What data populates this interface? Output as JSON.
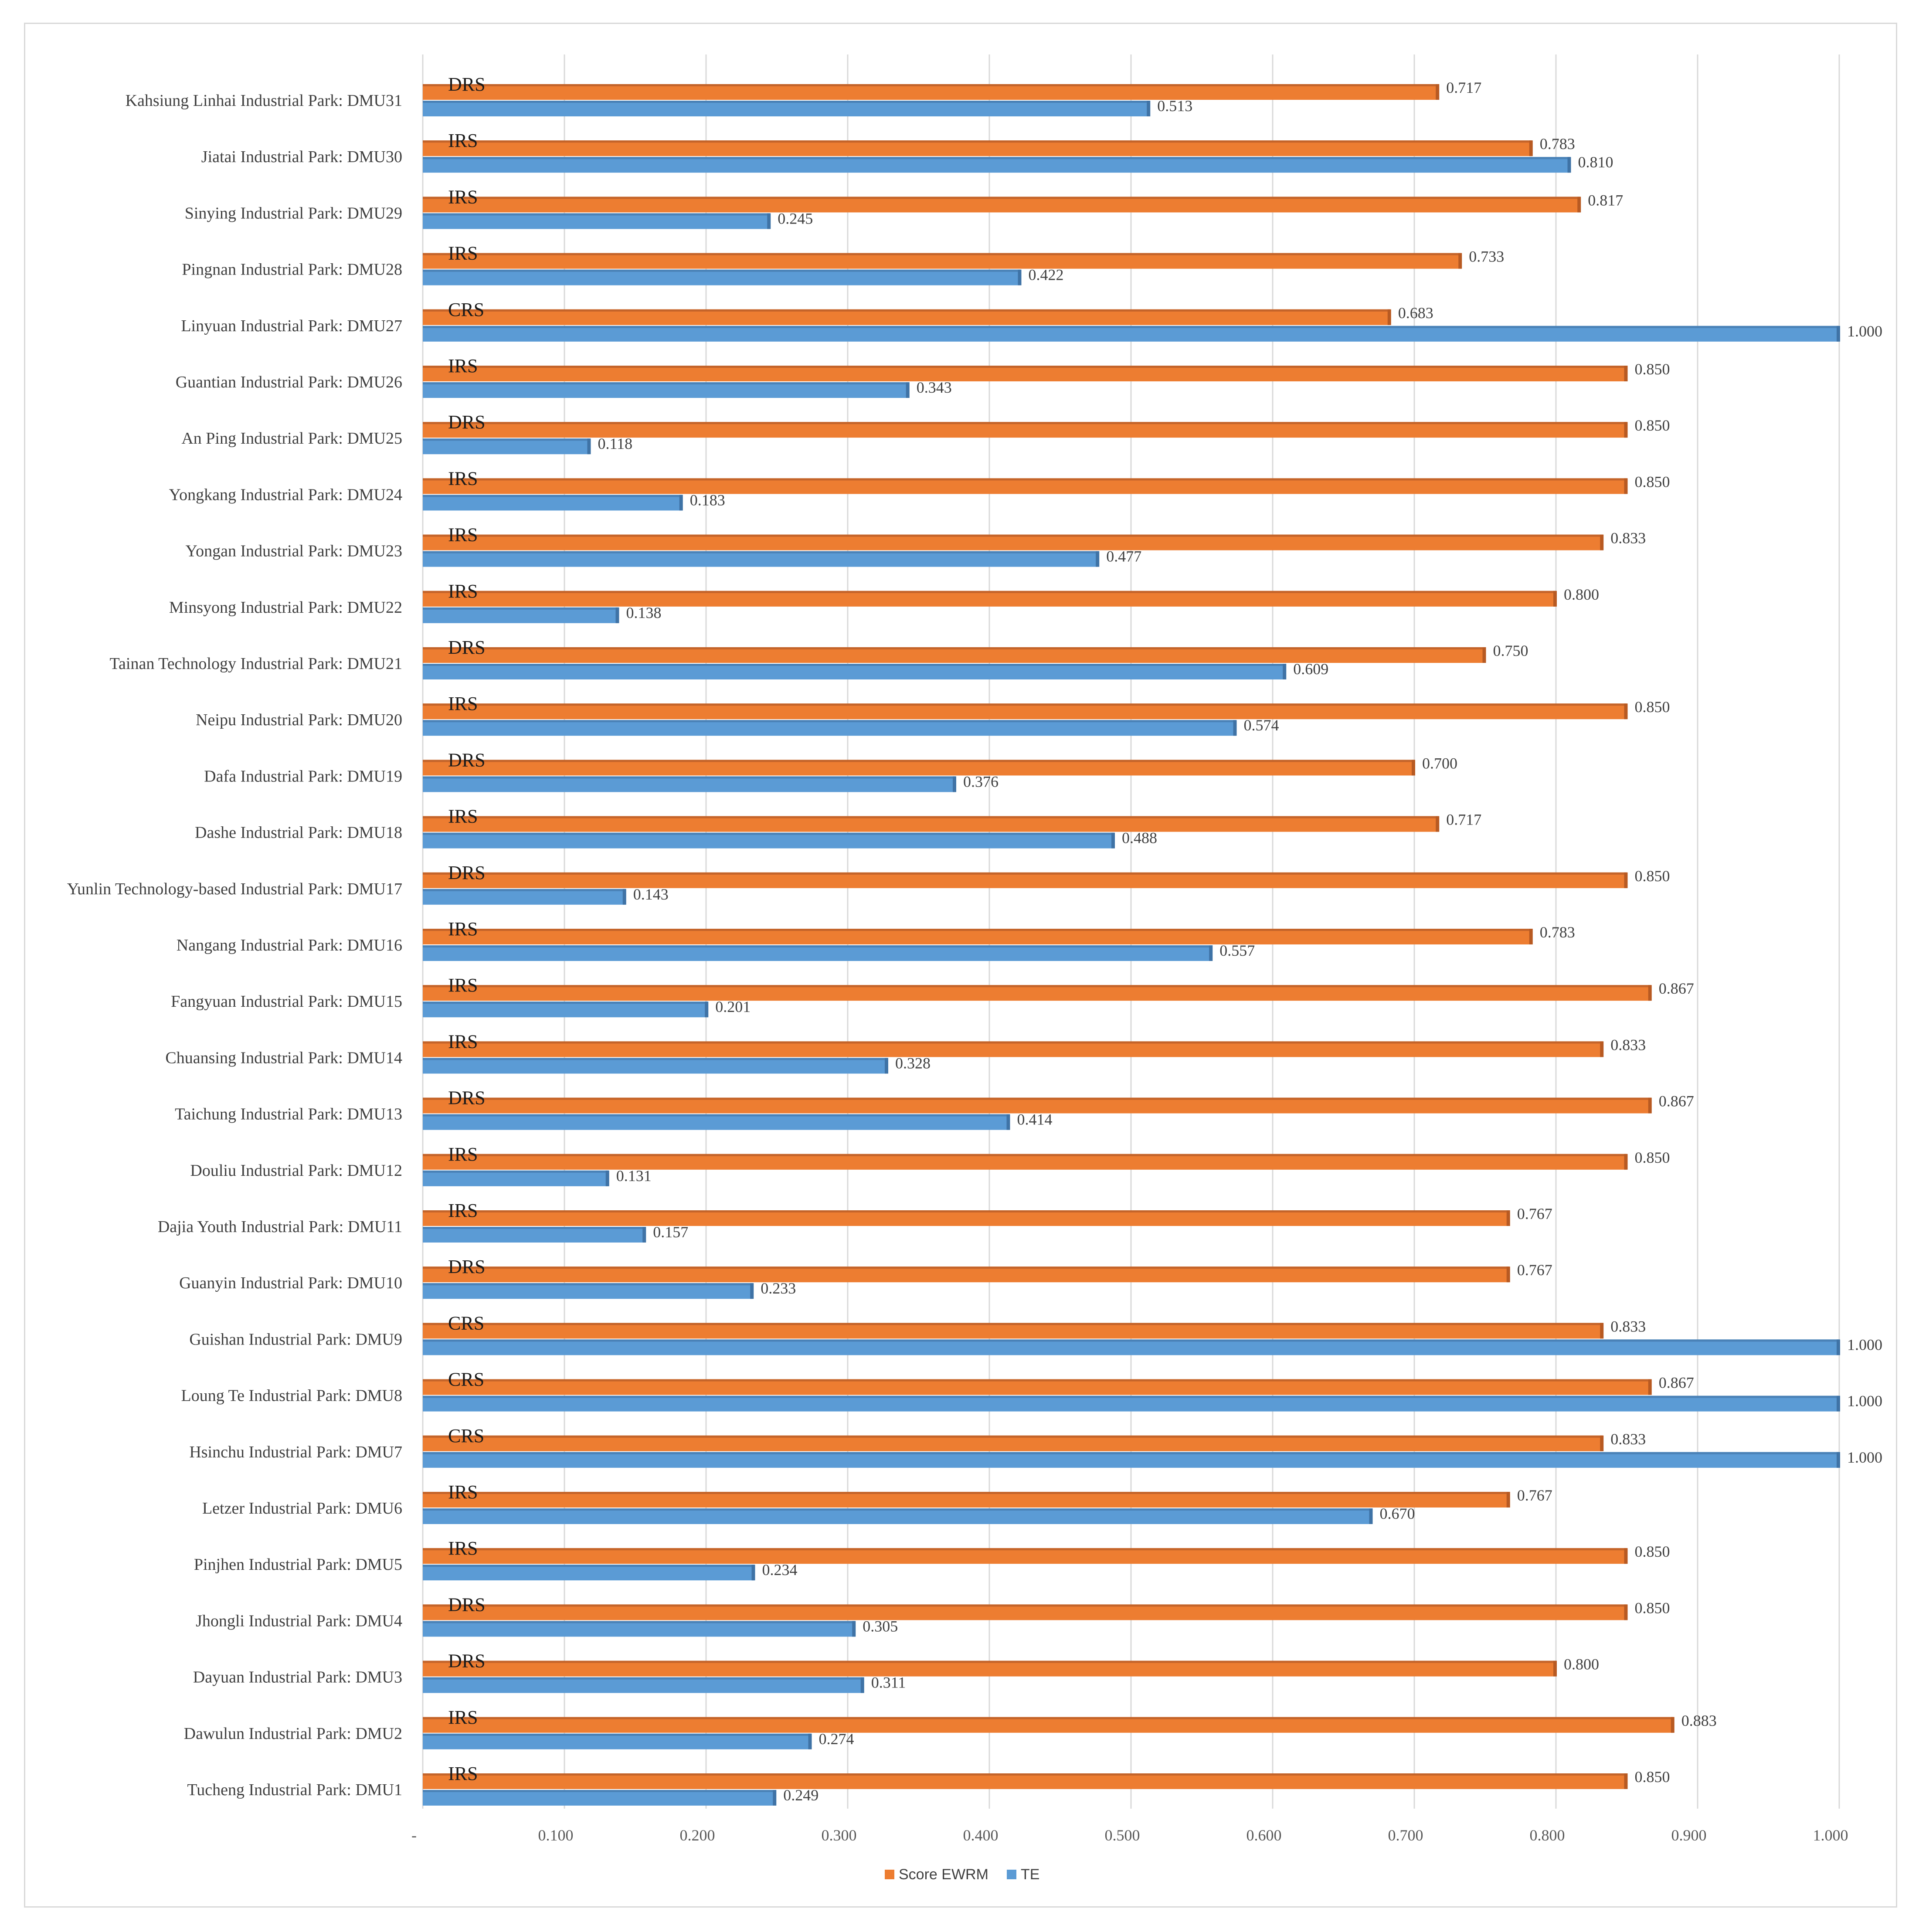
{
  "chart_data": {
    "type": "bar",
    "orientation": "horizontal",
    "title": "",
    "xlabel": "",
    "ylabel": "",
    "xlim": [
      0,
      1.0
    ],
    "x_ticks": [
      "-",
      "0.100",
      "0.200",
      "0.300",
      "0.400",
      "0.500",
      "0.600",
      "0.700",
      "0.800",
      "0.900",
      "1.000"
    ],
    "grid": "vertical",
    "legend_position": "bottom",
    "colors": {
      "score": "#ED7D31",
      "te": "#5B9BD5",
      "grid": "#d9d9d9"
    },
    "categories": [
      "Tucheng Industrial Park: DMU1",
      "Dawulun Industrial Park: DMU2",
      "Dayuan Industrial Park: DMU3",
      "Jhongli Industrial Park: DMU4",
      "Pinjhen Industrial Park: DMU5",
      "Letzer Industrial Park: DMU6",
      "Hsinchu Industrial Park: DMU7",
      "Loung Te Industrial Park: DMU8",
      "Guishan Industrial Park: DMU9",
      "Guanyin Industrial Park: DMU10",
      "Dajia Youth Industrial Park: DMU11",
      "Douliu Industrial Park: DMU12",
      "Taichung Industrial Park: DMU13",
      "Chuansing Industrial Park: DMU14",
      "Fangyuan Industrial Park: DMU15",
      "Nangang Industrial Park: DMU16",
      "Yunlin Technology-based Industrial Park: DMU17",
      "Dashe Industrial Park: DMU18",
      "Dafa Industrial Park: DMU19",
      "Neipu Industrial Park: DMU20",
      "Tainan Technology Industrial Park: DMU21",
      "Minsyong Industrial Park: DMU22",
      "Yongan Industrial Park: DMU23",
      "Yongkang Industrial Park: DMU24",
      "An Ping Industrial Park: DMU25",
      "Guantian Industrial Park: DMU26",
      "Linyuan Industrial Park: DMU27",
      "Pingnan Industrial Park: DMU28",
      "Sinying Industrial Park: DMU29",
      "Jiatai Industrial Park: DMU30",
      "Kahsiung Linhai Industrial Park: DMU31"
    ],
    "returns_to_scale": [
      "IRS",
      "IRS",
      "DRS",
      "DRS",
      "IRS",
      "IRS",
      "CRS",
      "CRS",
      "CRS",
      "DRS",
      "IRS",
      "IRS",
      "DRS",
      "IRS",
      "IRS",
      "IRS",
      "DRS",
      "IRS",
      "DRS",
      "IRS",
      "DRS",
      "IRS",
      "IRS",
      "IRS",
      "DRS",
      "IRS",
      "CRS",
      "IRS",
      "IRS",
      "IRS",
      "DRS"
    ],
    "series": [
      {
        "name": "Score EWRM",
        "values": [
          0.85,
          0.883,
          0.8,
          0.85,
          0.85,
          0.767,
          0.833,
          0.867,
          0.833,
          0.767,
          0.767,
          0.85,
          0.867,
          0.833,
          0.867,
          0.783,
          0.85,
          0.717,
          0.7,
          0.85,
          0.75,
          0.8,
          0.833,
          0.85,
          0.85,
          0.85,
          0.683,
          0.733,
          0.817,
          0.783,
          0.717
        ],
        "labels": [
          "0.850",
          "0.883",
          "0.800",
          "0.850",
          "0.850",
          "0.767",
          "0.833",
          "0.867",
          "0.833",
          "0.767",
          "0.767",
          "0.850",
          "0.867",
          "0.833",
          "0.867",
          "0.783",
          "0.850",
          "0.717",
          "0.700",
          "0.850",
          "0.750",
          "0.800",
          "0.833",
          "0.850",
          "0.850",
          "0.850",
          "0.683",
          "0.733",
          "0.817",
          "0.783",
          "0.717"
        ]
      },
      {
        "name": "TE",
        "values": [
          0.249,
          0.274,
          0.311,
          0.305,
          0.234,
          0.67,
          1.0,
          1.0,
          1.0,
          0.233,
          0.157,
          0.131,
          0.414,
          0.328,
          0.201,
          0.557,
          0.143,
          0.488,
          0.376,
          0.574,
          0.609,
          0.138,
          0.477,
          0.183,
          0.118,
          0.343,
          1.0,
          0.422,
          0.245,
          0.81,
          0.513
        ],
        "labels": [
          "0.249",
          "0.274",
          "0.311",
          "0.305",
          "0.234",
          "0.670",
          "1.000",
          "1.000",
          "1.000",
          "0.233",
          "0.157",
          "0.131",
          "0.414",
          "0.328",
          "0.201",
          "0.557",
          "0.143",
          "0.488",
          "0.376",
          "0.574",
          "0.609",
          "0.138",
          "0.477",
          "0.183",
          "0.118",
          "0.343",
          "1.000",
          "0.422",
          "0.245",
          "0.810",
          "0.513"
        ]
      }
    ]
  }
}
